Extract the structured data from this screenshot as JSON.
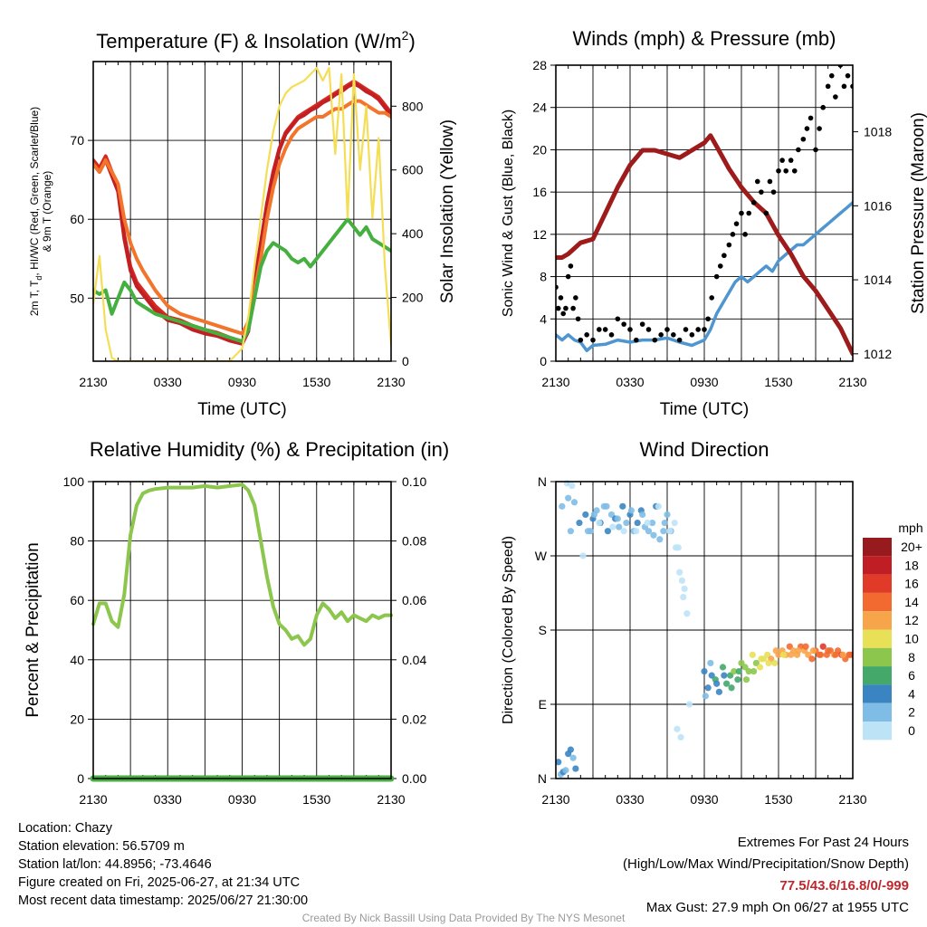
{
  "chart_data": [
    {
      "type": "line",
      "title": "Temperature (F) & Insolation (W/m",
      "title_sup": "2",
      "title_end": ")",
      "xlabel": "Time (UTC)",
      "ylabel_left": [
        "2m T, T",
        "d",
        ", HI/WC (Red, Green, Scarlet/Blue)",
        "& 9m T (Orange)"
      ],
      "ylabel_right": "Solar Insolation (Yellow)",
      "x_ticks": [
        "2130",
        "0330",
        "0930",
        "1530",
        "2130"
      ],
      "ylim_left": [
        42,
        80
      ],
      "yticks_left": [
        50,
        60,
        70
      ],
      "ylim_right": [
        0,
        940
      ],
      "yticks_right": [
        0,
        200,
        400,
        600,
        800
      ],
      "grid": true,
      "x_hours": [
        0,
        0.5,
        1,
        1.5,
        2,
        2.5,
        3,
        3.5,
        4,
        5,
        6,
        7,
        8,
        9,
        10,
        11,
        12,
        12.5,
        13,
        13.5,
        14,
        14.5,
        15,
        15.5,
        16,
        16.5,
        17,
        17.5,
        18,
        18.5,
        19,
        19.5,
        20,
        20.5,
        21,
        21.5,
        22,
        22.5,
        23,
        23.5,
        24
      ],
      "series": [
        {
          "name": "2m T",
          "color": "#d62a20",
          "axis": "left",
          "values": [
            67.5,
            66.5,
            68,
            66,
            64,
            58,
            54,
            52,
            51,
            49,
            47.6,
            47.2,
            46.5,
            46,
            45.6,
            45,
            44.5,
            46,
            52,
            57,
            62,
            66,
            69,
            71,
            72,
            73,
            73.5,
            74,
            74.5,
            75,
            75.5,
            76,
            76.5,
            77,
            77.5,
            77,
            76.5,
            76,
            75.5,
            74.5,
            73.5
          ]
        },
        {
          "name": "HI/WC",
          "color": "#c21f25",
          "axis": "left",
          "values": [
            67,
            66,
            67.5,
            65.5,
            63.5,
            57.5,
            53.5,
            51.5,
            50.5,
            48.5,
            47.2,
            46.8,
            46,
            45.5,
            45.2,
            44.6,
            44.2,
            45.8,
            51.8,
            56.8,
            61.8,
            65.8,
            68.8,
            70.8,
            71.8,
            72.8,
            73.2,
            73.8,
            74.2,
            74.8,
            75.2,
            75.8,
            76.2,
            76.8,
            77.2,
            76.8,
            76.2,
            75.8,
            75.2,
            74.2,
            73.2
          ]
        },
        {
          "name": "9m T",
          "color": "#f2752b",
          "axis": "left",
          "values": [
            67,
            66,
            67.5,
            66,
            64.5,
            60,
            57,
            55,
            53.5,
            51,
            49,
            48,
            47.5,
            47,
            46.5,
            46,
            45.5,
            47,
            51,
            55,
            60,
            64,
            67,
            69,
            70.5,
            71.5,
            72,
            72.5,
            73,
            73,
            73.5,
            74,
            74,
            74.5,
            75,
            75,
            74.5,
            74,
            73.5,
            73.5,
            73
          ]
        },
        {
          "name": "Td",
          "color": "#45b03f",
          "axis": "left",
          "values": [
            51,
            50.5,
            51,
            48,
            50,
            52,
            51,
            49.5,
            49,
            48,
            47.5,
            47,
            46.5,
            46,
            45.5,
            45,
            44.5,
            46,
            50,
            54,
            56,
            57,
            56.5,
            56,
            55,
            54.5,
            55,
            54,
            55,
            56,
            57,
            58,
            59,
            60,
            59,
            58,
            59,
            57.5,
            57,
            56.5,
            56
          ]
        },
        {
          "name": "Solar",
          "color": "#f4de55",
          "axis": "right",
          "values": [
            180,
            330,
            100,
            10,
            0,
            0,
            0,
            0,
            0,
            0,
            0,
            0,
            0,
            0,
            0,
            0,
            40,
            140,
            300,
            450,
            600,
            720,
            800,
            840,
            860,
            870,
            880,
            900,
            920,
            880,
            920,
            650,
            900,
            450,
            900,
            600,
            800,
            450,
            700,
            300,
            50
          ]
        }
      ]
    },
    {
      "type": "line",
      "title": "Winds (mph) & Pressure (mb)",
      "xlabel": "Time (UTC)",
      "ylabel_left": "Sonic Wind & Gust (Blue, Black)",
      "ylabel_right": "Station Pressure (Maroon)",
      "x_ticks": [
        "2130",
        "0330",
        "0930",
        "1530",
        "2130"
      ],
      "ylim_left": [
        0,
        28
      ],
      "yticks_left": [
        0,
        4,
        8,
        12,
        16,
        20,
        24,
        28
      ],
      "ylim_right": [
        1011.8,
        1019.8
      ],
      "yticks_right": [
        1012,
        1014,
        1016,
        1018
      ],
      "grid": true,
      "pressure": {
        "name": "Station Pressure",
        "color": "#9e1b1b",
        "x_hours": [
          0,
          0.5,
          1,
          2,
          3,
          4,
          5,
          6,
          7,
          8,
          9,
          10,
          11,
          12,
          12.5,
          13,
          14,
          15,
          16,
          17,
          18,
          19,
          20,
          21,
          22,
          23,
          24
        ],
        "values": [
          1014.6,
          1014.6,
          1014.7,
          1015.0,
          1015.1,
          1015.8,
          1016.5,
          1017.1,
          1017.5,
          1017.5,
          1017.4,
          1017.3,
          1017.5,
          1017.7,
          1017.9,
          1017.6,
          1017.0,
          1016.5,
          1016.1,
          1015.8,
          1015.2,
          1014.7,
          1014.1,
          1013.7,
          1013.2,
          1012.7,
          1012.0
        ]
      },
      "wind": {
        "name": "Sonic Wind",
        "color": "#4f96d0",
        "x_hours": [
          0,
          0.5,
          1,
          1.5,
          2,
          2.5,
          3,
          4,
          5,
          6,
          7,
          8,
          9,
          10,
          11,
          12,
          12.5,
          13,
          13.5,
          14,
          14.5,
          15,
          15.5,
          16,
          16.5,
          17,
          17.5,
          18,
          18.5,
          19,
          19.5,
          20,
          20.5,
          21,
          21.5,
          22,
          22.5,
          23,
          23.5,
          24
        ],
        "values": [
          2.5,
          2,
          2.5,
          2,
          1.8,
          1,
          1.5,
          1.6,
          2,
          1.8,
          2,
          2,
          2.2,
          1.8,
          1.5,
          2,
          3,
          4.5,
          5.5,
          6.5,
          7.5,
          8,
          7.5,
          8,
          8.5,
          9,
          8.5,
          9.5,
          10,
          10.5,
          11,
          11,
          11.5,
          12,
          12.5,
          13,
          13.5,
          14,
          14.5,
          15
        ]
      },
      "gusts": {
        "name": "Gust",
        "color": "#000000",
        "x": [
          0,
          0.2,
          0.4,
          0.6,
          0.8,
          1,
          1.2,
          1.4,
          1.6,
          1.8,
          2,
          2.5,
          3,
          3.5,
          4,
          4.5,
          5,
          5.5,
          6,
          6.5,
          7,
          7.5,
          8,
          8.5,
          9,
          9.5,
          10,
          10.5,
          11,
          11.5,
          12,
          12.3,
          12.6,
          13,
          13.3,
          13.6,
          14,
          14.3,
          14.6,
          15,
          15.3,
          15.6,
          16,
          16.3,
          16.6,
          17,
          17.3,
          17.6,
          18,
          18.3,
          18.6,
          19,
          19.3,
          19.6,
          20,
          20.3,
          20.6,
          21,
          21.3,
          21.6,
          22,
          22.3,
          22.6,
          23,
          23.3,
          23.6,
          24
        ],
        "y": [
          7,
          5,
          6,
          4.5,
          5,
          8,
          9,
          5,
          6,
          4,
          2,
          2.5,
          2,
          3,
          3,
          2.5,
          4,
          3.5,
          3,
          2,
          3.5,
          3,
          2,
          2.5,
          3,
          2.5,
          2,
          3,
          2.5,
          3,
          3,
          4,
          6,
          8,
          9,
          10,
          11,
          12,
          13,
          14,
          12,
          14,
          15,
          17,
          16,
          14,
          17,
          16,
          18,
          19,
          18,
          19,
          18,
          20,
          21,
          22,
          23,
          20,
          22,
          24,
          26,
          27,
          25,
          28,
          26,
          27,
          26
        ]
      }
    },
    {
      "type": "line",
      "title": "Relative Humidity (%) & Precipitation (in)",
      "ylabel_left": "Percent & Precipitation",
      "x_ticks": [
        "2130",
        "0330",
        "0930",
        "1530",
        "2130"
      ],
      "ylim_left": [
        0,
        100
      ],
      "yticks_left": [
        0,
        20,
        40,
        60,
        80,
        100
      ],
      "ylim_right": [
        0,
        0.1
      ],
      "yticks_right": [
        "0.00",
        "0.02",
        "0.04",
        "0.06",
        "0.08",
        "0.10"
      ],
      "grid": true,
      "series": [
        {
          "name": "Relative Humidity",
          "color": "#8cc64d",
          "x_hours": [
            0,
            0.5,
            1,
            1.5,
            2,
            2.5,
            3,
            3.5,
            4,
            4.5,
            5,
            6,
            7,
            8,
            9,
            10,
            11,
            12,
            12.5,
            13,
            13.5,
            14,
            14.5,
            15,
            15.5,
            16,
            16.5,
            17,
            17.5,
            18,
            18.5,
            19,
            19.5,
            20,
            20.5,
            21,
            21.5,
            22,
            22.5,
            23,
            23.5,
            24
          ],
          "values": [
            52,
            59,
            59,
            53,
            51,
            62,
            82,
            92,
            96,
            97,
            97.5,
            98,
            98,
            98,
            98.5,
            98,
            98.5,
            99,
            97,
            92,
            80,
            68,
            58,
            52,
            50,
            47,
            48,
            45,
            47,
            55,
            59,
            57,
            54,
            56,
            53,
            55,
            54,
            53,
            55,
            54,
            55,
            55
          ]
        },
        {
          "name": "Precipitation",
          "color": "#45b03f",
          "x_hours": [
            0,
            24
          ],
          "values": [
            0,
            0
          ]
        }
      ]
    },
    {
      "type": "scatter",
      "title": "Wind Direction",
      "ylabel_left": "Direction (Colored By Speed)",
      "x_ticks": [
        "2130",
        "0330",
        "0930",
        "1530",
        "2130"
      ],
      "y_ticks": [
        "N",
        "E",
        "S",
        "W",
        "N"
      ],
      "ylim": [
        0,
        360
      ],
      "grid": true,
      "colorbar_title": "mph",
      "colorbar": [
        {
          "label": "20+",
          "color": "#971b1e"
        },
        {
          "label": "18",
          "color": "#bf1f24"
        },
        {
          "label": "16",
          "color": "#e03a28"
        },
        {
          "label": "14",
          "color": "#f36a30"
        },
        {
          "label": "12",
          "color": "#f7a54a"
        },
        {
          "label": "10",
          "color": "#e8e057"
        },
        {
          "label": "8",
          "color": "#8cc64d"
        },
        {
          "label": "6",
          "color": "#43a86a"
        },
        {
          "label": "4",
          "color": "#3b84c2"
        },
        {
          "label": "2",
          "color": "#7fbce6"
        },
        {
          "label": "0",
          "color": "#bde3f7"
        }
      ],
      "points_x": [
        0.2,
        0.4,
        0.6,
        0.8,
        1.0,
        1.2,
        1.4,
        1.6,
        0.5,
        0.9,
        1.3,
        1.0,
        1.2,
        1.5,
        1.9,
        2.4,
        2.8,
        3.0,
        3.3,
        3.6,
        3.9,
        4.2,
        4.5,
        4.8,
        5.1,
        5.4,
        5.7,
        6.0,
        6.3,
        6.6,
        6.9,
        7.2,
        7.5,
        7.8,
        8.1,
        8.4,
        8.7,
        9.0,
        9.3,
        9.6,
        9.9,
        2.2,
        2.6,
        3.1,
        3.5,
        4.1,
        4.6,
        5.0,
        5.5,
        6.1,
        6.5,
        7.0,
        7.4,
        7.9,
        8.3,
        8.8,
        9.2,
        9.7,
        10.0,
        10.2,
        10.4,
        10.6,
        10.3,
        10.8,
        9.8,
        10.1,
        12.0,
        12.3,
        12.6,
        12.9,
        13.2,
        13.5,
        13.8,
        14.1,
        14.4,
        14.7,
        15.0,
        15.3,
        15.6,
        15.9,
        16.2,
        16.5,
        16.8,
        17.1,
        17.4,
        17.7,
        18.0,
        18.3,
        18.6,
        18.9,
        19.2,
        19.5,
        19.8,
        20.1,
        20.4,
        20.7,
        21.0,
        21.3,
        21.6,
        21.9,
        22.2,
        22.5,
        22.8,
        23.1,
        23.4,
        23.7,
        24.0,
        12.1,
        12.5,
        13.0,
        13.6,
        14.2,
        14.8,
        15.4,
        16.0,
        16.6,
        17.2,
        17.8,
        18.4,
        19.0,
        19.6,
        20.2,
        20.8,
        21.4,
        22.0,
        22.6,
        23.2,
        23.8
      ],
      "points_y": [
        20,
        5,
        8,
        10,
        30,
        35,
        25,
        12,
        330,
        358,
        355,
        340,
        300,
        335,
        310,
        320,
        300,
        315,
        325,
        310,
        330,
        300,
        320,
        315,
        305,
        330,
        310,
        320,
        300,
        310,
        325,
        305,
        300,
        310,
        330,
        290,
        300,
        320,
        300,
        310,
        280,
        270,
        300,
        320,
        310,
        330,
        305,
        315,
        300,
        325,
        300,
        320,
        310,
        295,
        330,
        310,
        300,
        280,
        250,
        240,
        230,
        200,
        220,
        90,
        60,
        50,
        130,
        110,
        125,
        120,
        105,
        135,
        115,
        125,
        130,
        120,
        140,
        135,
        130,
        150,
        140,
        135,
        145,
        150,
        145,
        140,
        150,
        155,
        150,
        160,
        155,
        150,
        160,
        155,
        150,
        145,
        155,
        150,
        160,
        150,
        155,
        150,
        155,
        150,
        145,
        150,
        150,
        100,
        140,
        115,
        125,
        110,
        130,
        120,
        130,
        145,
        140,
        155,
        150,
        150,
        155,
        160,
        155,
        150,
        155,
        150,
        150,
        150
      ],
      "points_speed": [
        4,
        3,
        4,
        3,
        4,
        5,
        3,
        4,
        2,
        1,
        1,
        2,
        3,
        3,
        4,
        4,
        3,
        4,
        3,
        4,
        3,
        4,
        3,
        4,
        3,
        4,
        3,
        4,
        3,
        4,
        4,
        3,
        2,
        3,
        4,
        2,
        2,
        2,
        2,
        1,
        1,
        1,
        2,
        2,
        1,
        2,
        1,
        2,
        1,
        2,
        1,
        2,
        1,
        2,
        1,
        2,
        1,
        1,
        1,
        1,
        1,
        1,
        1,
        1,
        1,
        1,
        4,
        5,
        4,
        6,
        5,
        6,
        7,
        6,
        8,
        7,
        8,
        9,
        8,
        10,
        9,
        10,
        11,
        10,
        12,
        11,
        12,
        13,
        12,
        14,
        13,
        12,
        14,
        13,
        12,
        14,
        15,
        14,
        16,
        14,
        15,
        13,
        15,
        16,
        14,
        15,
        16,
        2,
        3,
        4,
        5,
        6,
        7,
        8,
        9,
        10,
        11,
        12,
        11,
        13,
        12,
        14,
        13,
        14,
        15,
        14,
        13,
        15
      ]
    }
  ],
  "info": {
    "location": "Location: Chazy",
    "elevation": "Station elevation: 56.5709 m",
    "latlon": "Station lat/lon: 44.8956; -73.4646",
    "created": "Figure created on Fri, 2025-06-27, at 21:34 UTC",
    "recent": "Most recent data timestamp: 2025/06/27 21:30:00"
  },
  "extremes": {
    "title": "Extremes For Past 24 Hours",
    "subtitle": "(High/Low/Max Wind/Precipitation/Snow Depth)",
    "values": "77.5/43.6/16.8/0/-999",
    "gust": "Max Gust: 27.9 mph On 06/27 at 1955 UTC"
  },
  "credit": "Created By Nick Bassill Using Data Provided By The NYS Mesonet"
}
